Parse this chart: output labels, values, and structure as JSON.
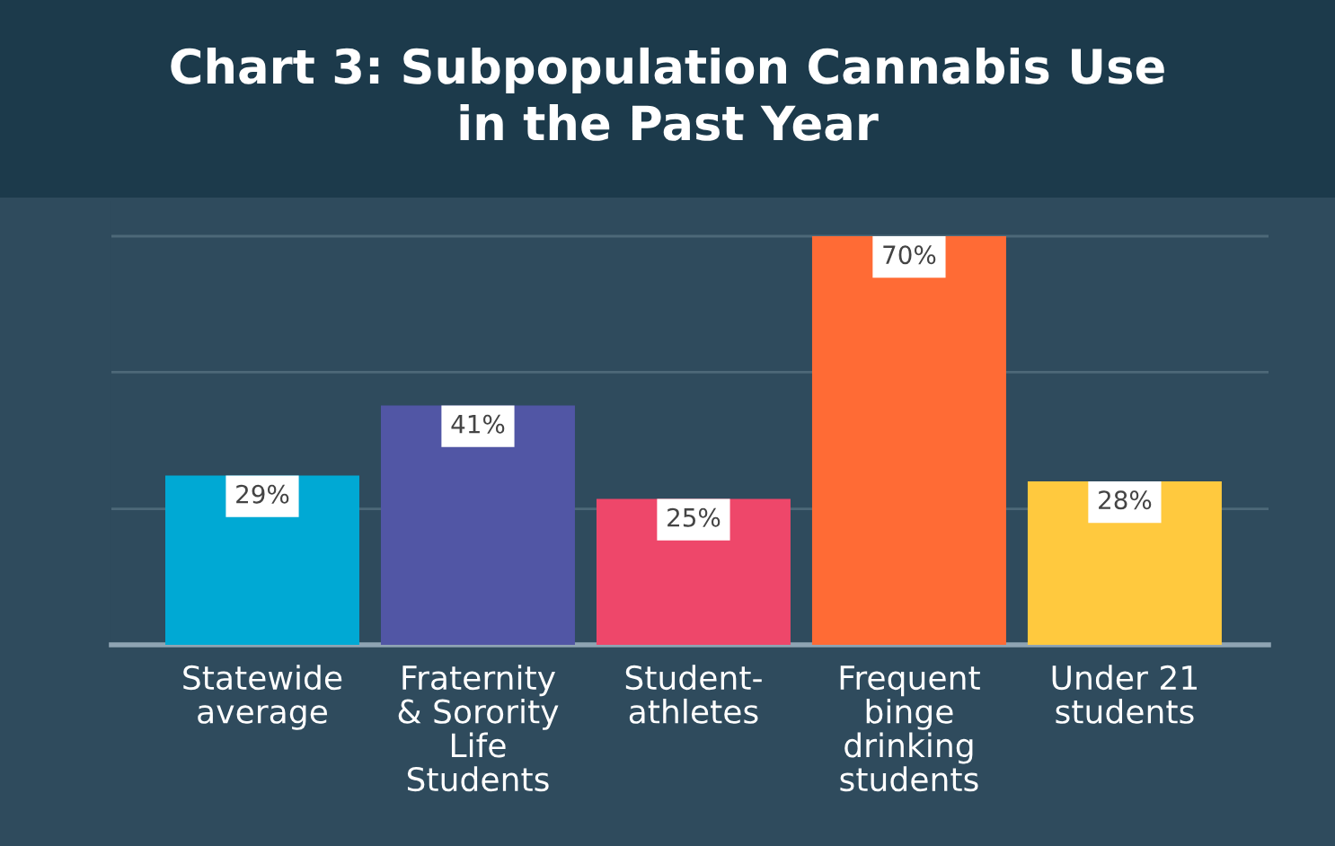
{
  "chart_data": {
    "type": "bar",
    "title": "Chart 3: Subpopulation Cannabis Use\nin the Past Year",
    "categories": [
      "Statewide\naverage",
      "Fraternity\n& Sorority\nLife\nStudents",
      "Student-\nathletes",
      "Frequent\nbinge\ndrinking\nstudents",
      "Under 21\nstudents"
    ],
    "values": [
      29,
      41,
      25,
      70,
      28
    ],
    "value_labels": [
      "29%",
      "41%",
      "25%",
      "70%",
      "28%"
    ],
    "colors": [
      "#00a9d4",
      "#5156a5",
      "#ee476a",
      "#ff6b35",
      "#ffc93e"
    ],
    "ylim": [
      0,
      76
    ],
    "yticks": [
      {
        "value": 23.3,
        "label": null
      },
      {
        "value": 46.7,
        "label": null
      },
      {
        "value": 70,
        "label": null
      }
    ],
    "grid": "y",
    "tick_labels": "x"
  }
}
